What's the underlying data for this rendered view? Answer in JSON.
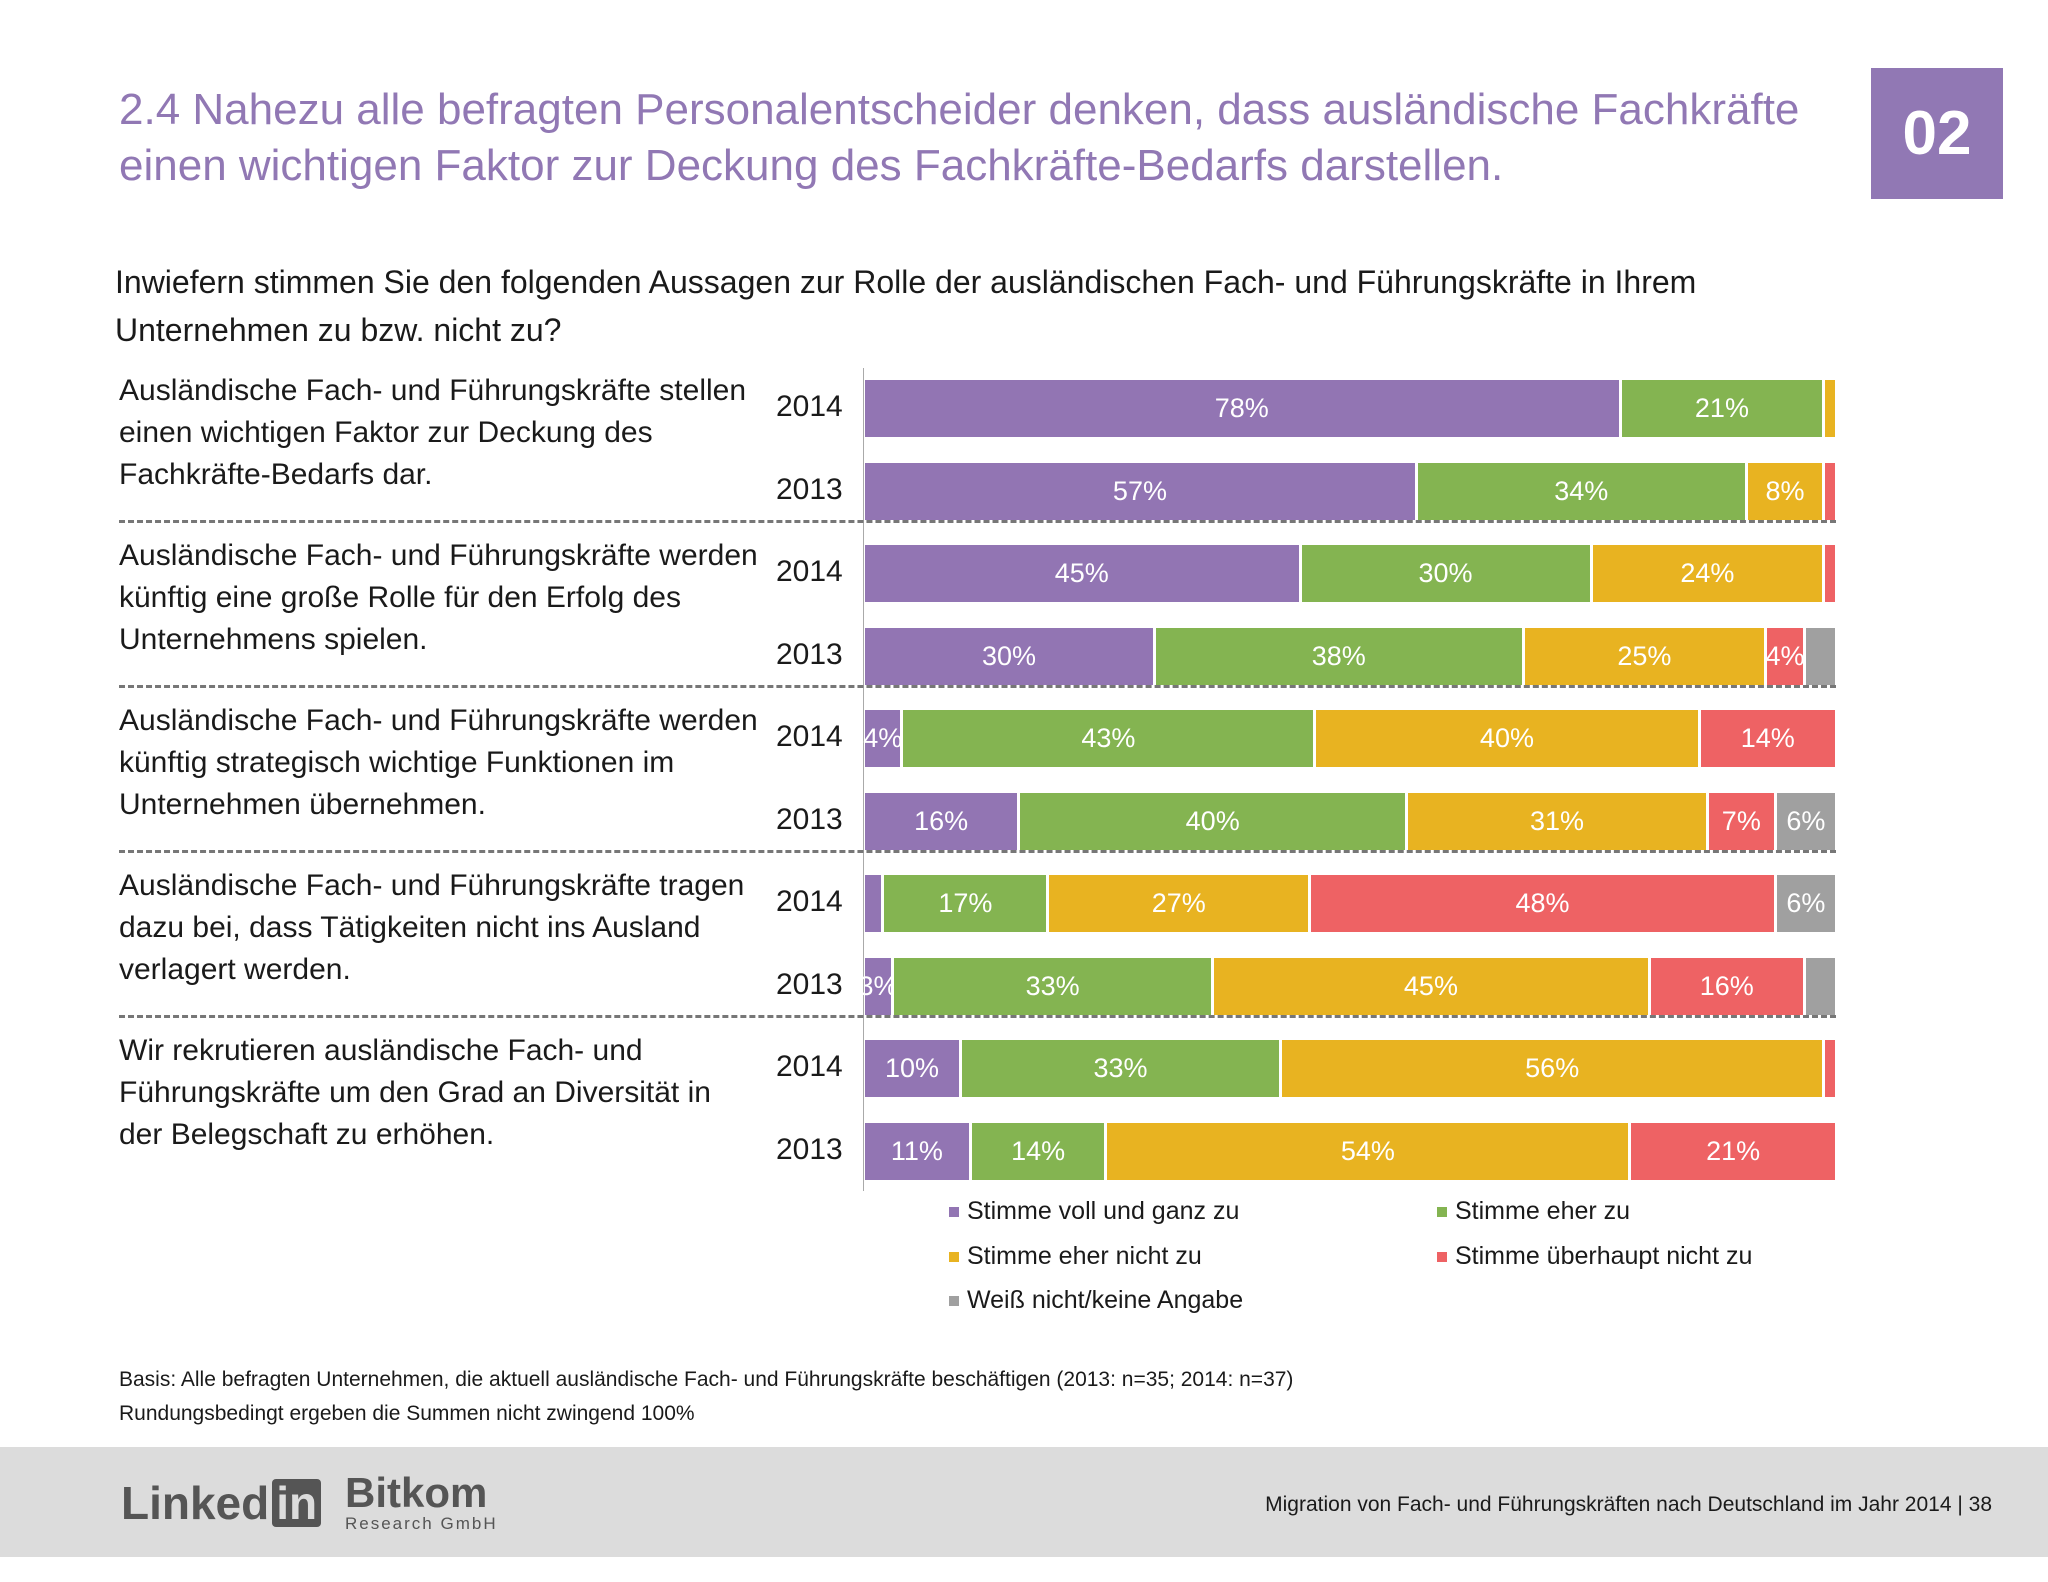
{
  "header": {
    "title": "2.4 Nahezu alle befragten Personalentscheider denken, dass ausländische Fachkräfte einen wichtigen Faktor zur Deckung des Fachkräfte-Bedarfs darstellen.",
    "badge": "02"
  },
  "question": "Inwiefern stimmen Sie den folgenden Aussagen zur Rolle der ausländischen Fach- und Führungskräfte in Ihrem Unternehmen zu bzw. nicht zu?",
  "chart_data": {
    "type": "bar",
    "orientation": "horizontal-stacked-100",
    "colors": [
      "#9275b3",
      "#84b451",
      "#e8b321",
      "#ee6264",
      "#a0a0a0"
    ],
    "legend": [
      "Stimme voll und ganz zu",
      "Stimme eher zu",
      "Stimme eher nicht zu",
      "Stimme überhaupt nicht zu",
      "Weiß nicht/keine Angabe"
    ],
    "legend_placement": "bottom",
    "groups": [
      {
        "statement": "Ausländische Fach- und Führungskräfte stellen einen wichtigen Faktor zur Deckung des Fachkräfte-Bedarfs dar.",
        "rows": [
          {
            "year": "2014",
            "values": [
              78,
              21,
              1,
              0,
              0
            ],
            "labels": [
              "78%",
              "21%",
              "",
              "",
              ""
            ]
          },
          {
            "year": "2013",
            "values": [
              57,
              34,
              8,
              1,
              0
            ],
            "labels": [
              "57%",
              "34%",
              "8%",
              "",
              ""
            ]
          }
        ]
      },
      {
        "statement": "Ausländische Fach- und Führungskräfte werden künftig eine große Rolle für den Erfolg des Unternehmens spielen.",
        "rows": [
          {
            "year": "2014",
            "values": [
              45,
              30,
              24,
              1,
              0
            ],
            "labels": [
              "45%",
              "30%",
              "24%",
              "",
              ""
            ]
          },
          {
            "year": "2013",
            "values": [
              30,
              38,
              25,
              4,
              3
            ],
            "labels": [
              "30%",
              "38%",
              "25%",
              "4%",
              ""
            ]
          }
        ]
      },
      {
        "statement": "Ausländische Fach- und Führungskräfte werden künftig strategisch wichtige Funktionen im Unternehmen übernehmen.",
        "rows": [
          {
            "year": "2014",
            "values": [
              4,
              43,
              40,
              14,
              0
            ],
            "labels": [
              "4%",
              "43%",
              "40%",
              "14%",
              ""
            ]
          },
          {
            "year": "2013",
            "values": [
              16,
              40,
              31,
              7,
              6
            ],
            "labels": [
              "16%",
              "40%",
              "31%",
              "7%",
              "6%"
            ]
          }
        ]
      },
      {
        "statement": "Ausländische Fach- und Führungskräfte tragen dazu bei, dass Tätigkeiten nicht ins Ausland verlagert werden.",
        "rows": [
          {
            "year": "2014",
            "values": [
              2,
              17,
              27,
              48,
              6
            ],
            "labels": [
              "",
              "17%",
              "27%",
              "48%",
              "6%"
            ]
          },
          {
            "year": "2013",
            "values": [
              3,
              33,
              45,
              16,
              3
            ],
            "labels": [
              "3%",
              "33%",
              "45%",
              "16%",
              ""
            ]
          }
        ]
      },
      {
        "statement": "Wir rekrutieren ausländische Fach- und Führungskräfte um den Grad an Diversität in der Belegschaft zu erhöhen.",
        "rows": [
          {
            "year": "2014",
            "values": [
              10,
              33,
              56,
              1,
              0
            ],
            "labels": [
              "10%",
              "33%",
              "56%",
              "",
              ""
            ]
          },
          {
            "year": "2013",
            "values": [
              11,
              14,
              54,
              21,
              0
            ],
            "labels": [
              "11%",
              "14%",
              "54%",
              "21%",
              ""
            ]
          }
        ]
      }
    ]
  },
  "footnotes": [
    "Basis: Alle befragten Unternehmen, die aktuell ausländische Fach- und Führungskräfte beschäftigen (2013: n=35; 2014: n=37)",
    "Rundungsbedingt ergeben die Summen nicht zwingend 100%"
  ],
  "footer": {
    "logo_linkedin": "LinkedIn",
    "logo_bitkom": "Bitkom",
    "logo_bitkom_sub": "Research GmbH",
    "text": "Migration von Fach- und Führungskräften nach Deutschland im Jahr 2014  |  38"
  }
}
